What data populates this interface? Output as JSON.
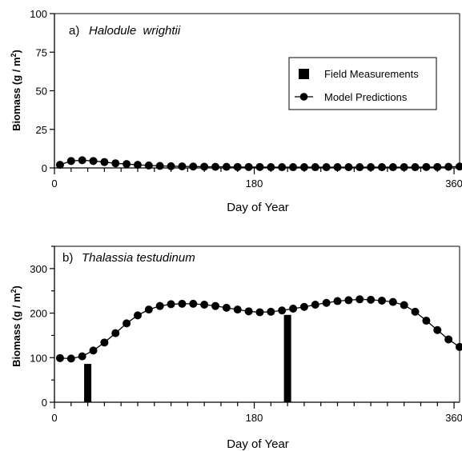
{
  "chart_data": [
    {
      "type": "line",
      "panel_label": "a)",
      "title": "Halodule  wrightii",
      "xlabel": "Day of Year",
      "ylabel": "Biomass (g / m",
      "ylabel_sup": "2",
      "ylabel_close": ")",
      "xlim": [
        0,
        365
      ],
      "ylim": [
        0,
        100
      ],
      "x_ticks": [
        "0",
        "180",
        "360"
      ],
      "y_ticks": [
        "0",
        "25",
        "50",
        "75",
        "100"
      ],
      "legend": {
        "position": "right",
        "field_label": "Field Measurements",
        "model_label": "Model Predictions"
      },
      "series": [
        {
          "role": "model",
          "x": [
            5,
            15,
            25,
            35,
            45,
            55,
            65,
            75,
            85,
            95,
            105,
            115,
            125,
            135,
            145,
            155,
            165,
            175,
            185,
            195,
            205,
            215,
            225,
            235,
            245,
            255,
            265,
            275,
            285,
            295,
            305,
            315,
            325,
            335,
            345,
            355,
            365
          ],
          "y": [
            2,
            4.5,
            5,
            4.5,
            3.8,
            3,
            2.5,
            2,
            1.6,
            1.3,
            1.1,
            1,
            0.9,
            0.8,
            0.7,
            0.7,
            0.6,
            0.6,
            0.6,
            0.5,
            0.5,
            0.5,
            0.5,
            0.5,
            0.5,
            0.5,
            0.5,
            0.5,
            0.5,
            0.5,
            0.5,
            0.5,
            0.5,
            0.6,
            0.6,
            0.7,
            0.9
          ]
        }
      ],
      "field": []
    },
    {
      "type": "line",
      "panel_label": "b)",
      "title": "Thalassia testudinum",
      "xlabel": "Day of Year",
      "ylabel": "Biomass (g / m",
      "ylabel_sup": "2",
      "ylabel_close": ")",
      "xlim": [
        0,
        365
      ],
      "ylim": [
        0,
        350
      ],
      "x_ticks": [
        "0",
        "180",
        "360"
      ],
      "y_ticks": [
        "0",
        "100",
        "200",
        "300"
      ],
      "series": [
        {
          "role": "model",
          "x": [
            5,
            15,
            25,
            35,
            45,
            55,
            65,
            75,
            85,
            95,
            105,
            115,
            125,
            135,
            145,
            155,
            165,
            175,
            185,
            195,
            205,
            215,
            225,
            235,
            245,
            255,
            265,
            275,
            285,
            295,
            305,
            315,
            325,
            335,
            345,
            355,
            365
          ],
          "y": [
            99,
            98,
            103,
            116,
            134,
            155,
            177,
            195,
            208,
            216,
            220,
            221,
            221,
            219,
            216,
            212,
            208,
            204,
            202,
            203,
            206,
            210,
            214,
            219,
            223,
            227,
            229,
            231,
            230,
            228,
            225,
            218,
            203,
            183,
            162,
            141,
            124
          ]
        }
      ],
      "field": [
        {
          "x": 30,
          "y": 86
        },
        {
          "x": 210,
          "y": 196
        }
      ]
    }
  ]
}
